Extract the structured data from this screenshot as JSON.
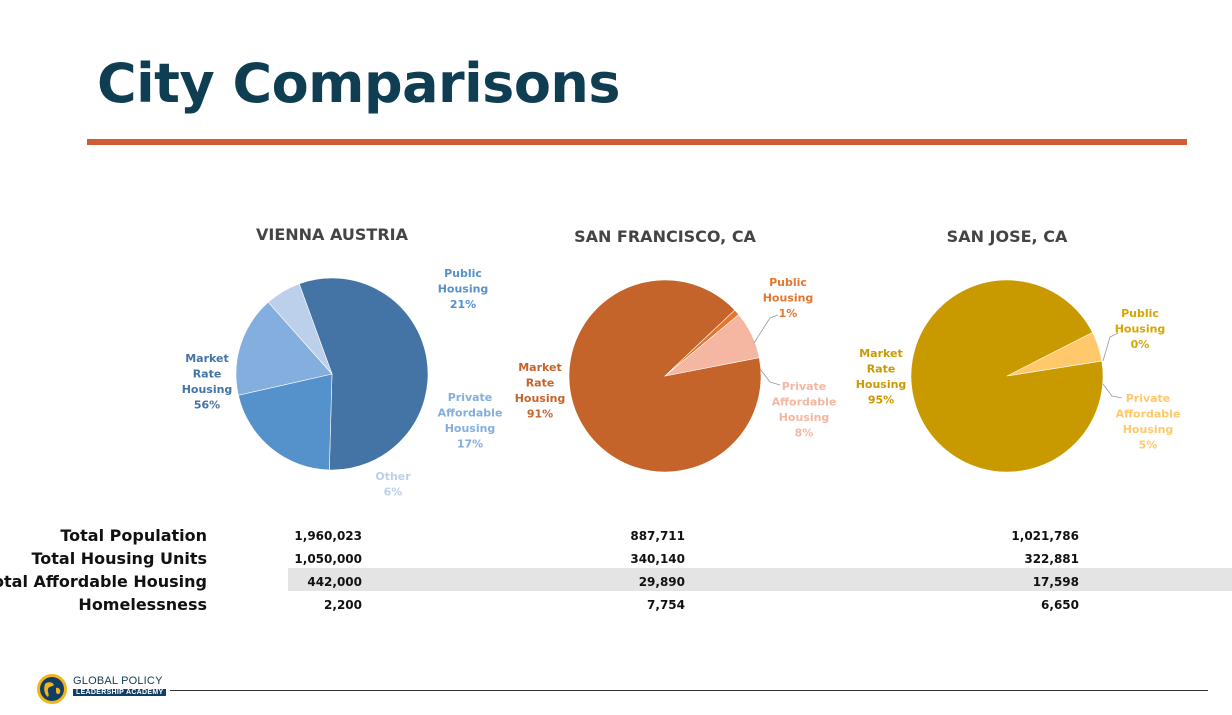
{
  "page": {
    "title": "City Comparisons"
  },
  "colors": {
    "title": "#0f3d52",
    "rule": "#d05c36",
    "vienna": [
      "#4474a6",
      "#5591cb",
      "#83aedd",
      "#bccfeb"
    ],
    "vienna_labels": [
      "#4474a6",
      "#5591cb",
      "#83aedd",
      "#bccfeb"
    ],
    "sf": [
      "#c4642a",
      "#e4772e",
      "#f5b7a1"
    ],
    "sf_labels": [
      "#c4642a",
      "#e4772e",
      "#f5b7a1"
    ],
    "sj": [
      "#c99a00",
      "#d8a400",
      "#ffc86a"
    ],
    "sj_labels": [
      "#c99a00",
      "#d8a400",
      "#ffc86a"
    ]
  },
  "chart_data": [
    {
      "type": "pie",
      "title": "VIENNA AUSTRIA",
      "slices": [
        {
          "label_lines": [
            "Market",
            "Rate",
            "Housing"
          ],
          "value": 56,
          "pct": "56%"
        },
        {
          "label_lines": [
            "Public",
            "Housing"
          ],
          "value": 21,
          "pct": "21%"
        },
        {
          "label_lines": [
            "Private",
            "Affordable",
            "Housing"
          ],
          "value": 17,
          "pct": "17%"
        },
        {
          "label_lines": [
            "Other"
          ],
          "value": 6,
          "pct": "6%"
        }
      ],
      "start_angle_deg": 110
    },
    {
      "type": "pie",
      "title": "SAN FRANCISCO, CA",
      "slices": [
        {
          "label_lines": [
            "Market",
            "Rate",
            "Housing"
          ],
          "value": 91,
          "pct": "91%"
        },
        {
          "label_lines": [
            "Public",
            "Housing"
          ],
          "value": 1,
          "pct": "1%"
        },
        {
          "label_lines": [
            "Private",
            "Affordable",
            "Housing"
          ],
          "value": 8,
          "pct": "8%"
        }
      ],
      "start_angle_deg": 11
    },
    {
      "type": "pie",
      "title": "SAN JOSE, CA",
      "slices": [
        {
          "label_lines": [
            "Market",
            "Rate",
            "Housing"
          ],
          "value": 95,
          "pct": "95%"
        },
        {
          "label_lines": [
            "Public",
            "Housing"
          ],
          "value": 0,
          "pct": "0%"
        },
        {
          "label_lines": [
            "Private",
            "Affordable",
            "Housing"
          ],
          "value": 5,
          "pct": "5%"
        }
      ],
      "start_angle_deg": 9
    }
  ],
  "table": {
    "rows": [
      {
        "label": "Total Population",
        "values": [
          "1,960,023",
          "887,711",
          "1,021,786"
        ]
      },
      {
        "label": "Total Housing Units",
        "values": [
          "1,050,000",
          "340,140",
          "322,881"
        ]
      },
      {
        "label": "Total Affordable Housing",
        "values": [
          "442,000",
          "29,890",
          "17,598"
        ]
      },
      {
        "label": "Homelessness",
        "values": [
          "2,200",
          "7,754",
          "6,650"
        ]
      }
    ]
  },
  "footer": {
    "logo_line1": "GLOBAL POLICY",
    "logo_line2": "LEADERSHIP ACADEMY"
  }
}
